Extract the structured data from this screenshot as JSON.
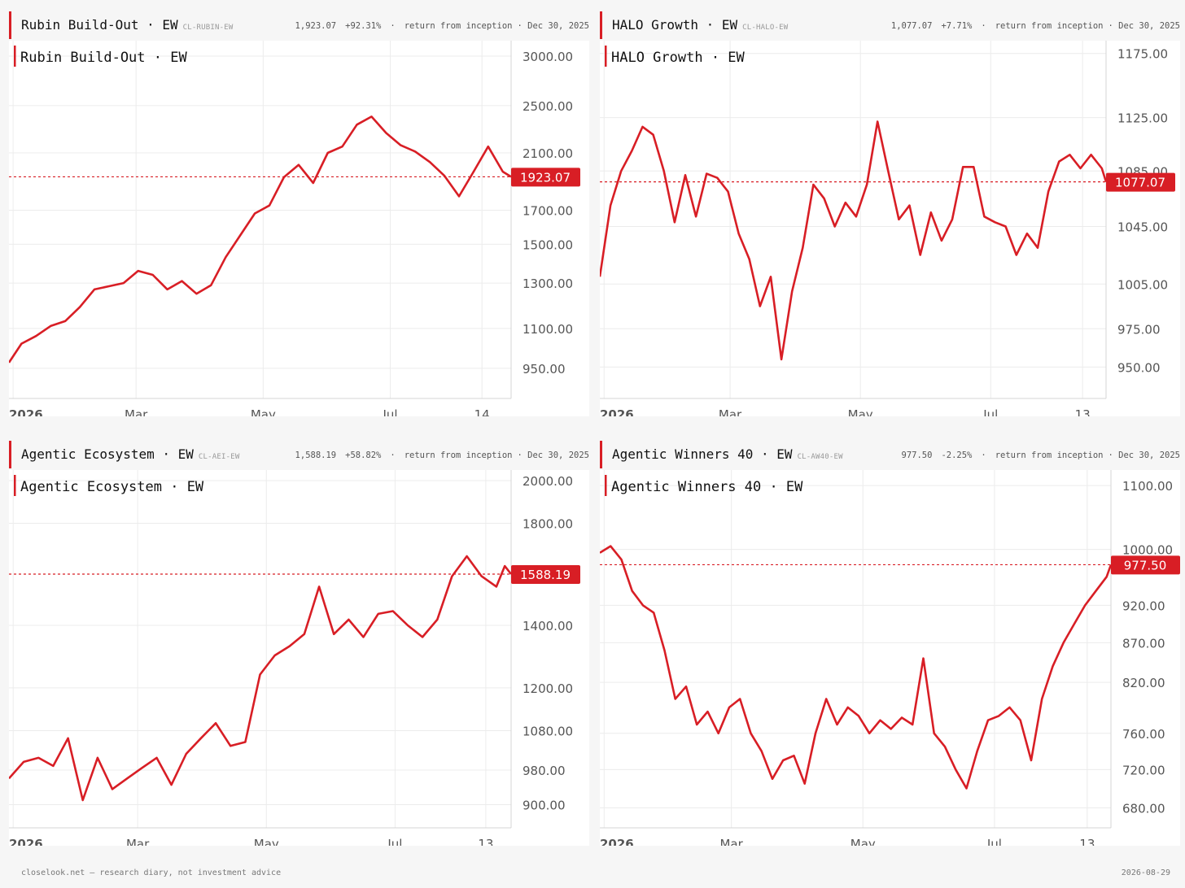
{
  "panels": [
    {
      "title": "Rubin Build-Out · EW",
      "code": "CL-RUBIN-EW",
      "value": "1,923.07",
      "change": "+92.31%",
      "sep": "·",
      "desc": "return from inception",
      "date": "· Dec 30, 2025"
    },
    {
      "title": "HALO Growth · EW",
      "code": "CL-HALO-EW",
      "value": "1,077.07",
      "change": "+7.71%",
      "sep": "·",
      "desc": "return from inception",
      "date": "· Dec 30, 2025"
    },
    {
      "title": "Agentic Ecosystem · EW",
      "code": "CL-AEI-EW",
      "value": "1,588.19",
      "change": "+58.82%",
      "sep": "·",
      "desc": "return from inception",
      "date": "· Dec 30, 2025"
    },
    {
      "title": "Agentic Winners 40 · EW",
      "code": "CL-AW40-EW",
      "value": "977.50",
      "change": "-2.25%",
      "sep": "·",
      "desc": "return from inception",
      "date": "· Dec 30, 2025"
    }
  ],
  "footer": {
    "left": "closelook.net — research diary, not investment advice",
    "right": "2026-08-29"
  },
  "colors": {
    "line": "#d81e25",
    "grid": "#ececec",
    "axis": "#d4d4d4",
    "tick_text": "#555555",
    "price_tag_text": "#ffffff"
  },
  "chart_data": [
    {
      "type": "line",
      "title": "Rubin Build-Out · EW",
      "y_scale": "log",
      "ylim": [
        850,
        3100
      ],
      "yticks": [
        3000,
        2500,
        2100,
        1700,
        1500,
        1300,
        1100,
        950
      ],
      "ytick_labels": [
        "3000.00",
        "2500.00",
        "2100.00",
        "1700.00",
        "1500.00",
        "1300.00",
        "1100.00",
        "950.00"
      ],
      "xlim": [
        "2025-12-30",
        "2026-08-28"
      ],
      "xticks": [
        "2026-01-01",
        "2026-03-01",
        "2026-05-01",
        "2026-07-01",
        "2026-08-14"
      ],
      "xtick_labels": [
        "2026",
        "Mar",
        "May",
        "Jul",
        "14"
      ],
      "last_value": 1923.07,
      "last_label": "1923.07",
      "grid": true,
      "series": [
        {
          "x": [
            "2025-12-30",
            "2026-01-05",
            "2026-01-12",
            "2026-01-19",
            "2026-01-26",
            "2026-02-02",
            "2026-02-09",
            "2026-02-16",
            "2026-02-23",
            "2026-03-02",
            "2026-03-09",
            "2026-03-16",
            "2026-03-23",
            "2026-03-30",
            "2026-04-06",
            "2026-04-13",
            "2026-04-20",
            "2026-04-27",
            "2026-05-04",
            "2026-05-11",
            "2026-05-18",
            "2026-05-25",
            "2026-06-01",
            "2026-06-08",
            "2026-06-15",
            "2026-06-22",
            "2026-06-29",
            "2026-07-06",
            "2026-07-13",
            "2026-07-20",
            "2026-07-27",
            "2026-08-03",
            "2026-08-10",
            "2026-08-17",
            "2026-08-24",
            "2026-08-28"
          ],
          "y": [
            970,
            1040,
            1070,
            1110,
            1130,
            1190,
            1270,
            1285,
            1300,
            1360,
            1340,
            1270,
            1310,
            1250,
            1290,
            1430,
            1550,
            1680,
            1730,
            1920,
            2010,
            1880,
            2100,
            2150,
            2330,
            2400,
            2260,
            2160,
            2110,
            2030,
            1930,
            1790,
            1960,
            2150,
            1960,
            1923.07
          ]
        }
      ]
    },
    {
      "type": "line",
      "title": "HALO Growth · EW",
      "y_scale": "log",
      "ylim": [
        930,
        1180
      ],
      "yticks": [
        1175,
        1125,
        1085,
        1045,
        1005,
        975,
        950
      ],
      "ytick_labels": [
        "1175.00",
        "1125.00",
        "1085.00",
        "1045.00",
        "1005.00",
        "975.00",
        "950.00"
      ],
      "xlim": [
        "2025-12-30",
        "2026-08-24"
      ],
      "xticks": [
        "2026-01-01",
        "2026-03-01",
        "2026-05-01",
        "2026-07-01",
        "2026-08-13"
      ],
      "xtick_labels": [
        "2026",
        "Mar",
        "May",
        "Jul",
        "13"
      ],
      "last_value": 1077.07,
      "last_label": "1077.07",
      "grid": true,
      "series": [
        {
          "x": [
            "2025-12-30",
            "2026-01-04",
            "2026-01-09",
            "2026-01-14",
            "2026-01-19",
            "2026-01-24",
            "2026-01-29",
            "2026-02-03",
            "2026-02-08",
            "2026-02-13",
            "2026-02-18",
            "2026-02-23",
            "2026-02-28",
            "2026-03-05",
            "2026-03-10",
            "2026-03-15",
            "2026-03-20",
            "2026-03-25",
            "2026-03-30",
            "2026-04-04",
            "2026-04-09",
            "2026-04-14",
            "2026-04-19",
            "2026-04-24",
            "2026-04-29",
            "2026-05-04",
            "2026-05-09",
            "2026-05-14",
            "2026-05-19",
            "2026-05-24",
            "2026-05-29",
            "2026-06-03",
            "2026-06-08",
            "2026-06-13",
            "2026-06-18",
            "2026-06-23",
            "2026-06-28",
            "2026-07-03",
            "2026-07-08",
            "2026-07-13",
            "2026-07-18",
            "2026-07-23",
            "2026-07-28",
            "2026-08-02",
            "2026-08-07",
            "2026-08-12",
            "2026-08-17",
            "2026-08-22",
            "2026-08-24"
          ],
          "y": [
            1010,
            1060,
            1085,
            1100,
            1118,
            1112,
            1085,
            1048,
            1082,
            1052,
            1083,
            1080,
            1070,
            1040,
            1022,
            990,
            1010,
            955,
            1000,
            1030,
            1075,
            1065,
            1045,
            1062,
            1052,
            1075,
            1122,
            1085,
            1050,
            1060,
            1025,
            1055,
            1035,
            1050,
            1088,
            1088,
            1052,
            1048,
            1045,
            1025,
            1040,
            1030,
            1070,
            1092,
            1097,
            1087,
            1097,
            1087,
            1077.07
          ]
        }
      ]
    },
    {
      "type": "line",
      "title": "Agentic Ecosystem · EW",
      "y_scale": "log",
      "ylim": [
        850,
        2020
      ],
      "yticks": [
        2000,
        1800,
        1400,
        1200,
        1080,
        980,
        900
      ],
      "ytick_labels": [
        "2000.00",
        "1800.00",
        "1400.00",
        "1200.00",
        "1080.00",
        "980.00",
        "900.00"
      ],
      "xlim": [
        "2025-12-30",
        "2026-08-25"
      ],
      "xticks": [
        "2026-01-01",
        "2026-03-01",
        "2026-05-01",
        "2026-07-01",
        "2026-08-13"
      ],
      "xtick_labels": [
        "2026",
        "Mar",
        "May",
        "Jul",
        "13"
      ],
      "last_value": 1588.19,
      "last_label": "1588.19",
      "grid": true,
      "series": [
        {
          "x": [
            "2025-12-30",
            "2026-01-06",
            "2026-01-13",
            "2026-01-20",
            "2026-01-27",
            "2026-02-03",
            "2026-02-10",
            "2026-02-17",
            "2026-02-24",
            "2026-03-03",
            "2026-03-10",
            "2026-03-17",
            "2026-03-24",
            "2026-03-31",
            "2026-04-07",
            "2026-04-14",
            "2026-04-21",
            "2026-04-28",
            "2026-05-05",
            "2026-05-12",
            "2026-05-19",
            "2026-05-26",
            "2026-06-02",
            "2026-06-09",
            "2026-06-16",
            "2026-06-23",
            "2026-06-30",
            "2026-07-07",
            "2026-07-14",
            "2026-07-21",
            "2026-07-28",
            "2026-08-04",
            "2026-08-11",
            "2026-08-18",
            "2026-08-22",
            "2026-08-25"
          ],
          "y": [
            960,
            1000,
            1010,
            990,
            1060,
            910,
            1010,
            935,
            960,
            985,
            1010,
            945,
            1020,
            1060,
            1100,
            1040,
            1050,
            1240,
            1300,
            1330,
            1370,
            1540,
            1370,
            1420,
            1360,
            1440,
            1450,
            1400,
            1360,
            1420,
            1580,
            1660,
            1580,
            1540,
            1620,
            1588.19
          ]
        }
      ]
    },
    {
      "type": "line",
      "title": "Agentic Winners 40 · EW",
      "y_scale": "log",
      "ylim": [
        660,
        1115
      ],
      "yticks": [
        1100,
        1000,
        920,
        870,
        820,
        760,
        720,
        680
      ],
      "ytick_labels": [
        "1100.00",
        "1000.00",
        "920.00",
        "870.00",
        "820.00",
        "760.00",
        "720.00",
        "680.00"
      ],
      "xlim": [
        "2025-12-30",
        "2026-08-24"
      ],
      "xticks": [
        "2026-01-01",
        "2026-03-01",
        "2026-05-01",
        "2026-07-01",
        "2026-08-13"
      ],
      "xtick_labels": [
        "2026",
        "Mar",
        "May",
        "Jul",
        "13"
      ],
      "last_value": 977.5,
      "last_label": "977.50",
      "grid": true,
      "series": [
        {
          "x": [
            "2025-12-30",
            "2026-01-04",
            "2026-01-09",
            "2026-01-14",
            "2026-01-19",
            "2026-01-24",
            "2026-01-29",
            "2026-02-03",
            "2026-02-08",
            "2026-02-13",
            "2026-02-18",
            "2026-02-23",
            "2026-02-28",
            "2026-03-05",
            "2026-03-10",
            "2026-03-15",
            "2026-03-20",
            "2026-03-25",
            "2026-03-30",
            "2026-04-04",
            "2026-04-09",
            "2026-04-14",
            "2026-04-19",
            "2026-04-24",
            "2026-04-29",
            "2026-05-04",
            "2026-05-09",
            "2026-05-14",
            "2026-05-19",
            "2026-05-24",
            "2026-05-29",
            "2026-06-03",
            "2026-06-08",
            "2026-06-13",
            "2026-06-18",
            "2026-06-23",
            "2026-06-28",
            "2026-07-03",
            "2026-07-08",
            "2026-07-13",
            "2026-07-18",
            "2026-07-23",
            "2026-07-28",
            "2026-08-02",
            "2026-08-07",
            "2026-08-12",
            "2026-08-17",
            "2026-08-22",
            "2026-08-24"
          ],
          "y": [
            995,
            1005,
            985,
            940,
            920,
            910,
            860,
            800,
            815,
            770,
            785,
            760,
            790,
            800,
            760,
            740,
            710,
            730,
            735,
            705,
            760,
            800,
            770,
            790,
            780,
            760,
            775,
            765,
            778,
            770,
            850,
            760,
            745,
            720,
            700,
            740,
            775,
            780,
            790,
            775,
            730,
            800,
            840,
            870,
            895,
            920,
            940,
            960,
            977.5
          ]
        }
      ]
    }
  ]
}
